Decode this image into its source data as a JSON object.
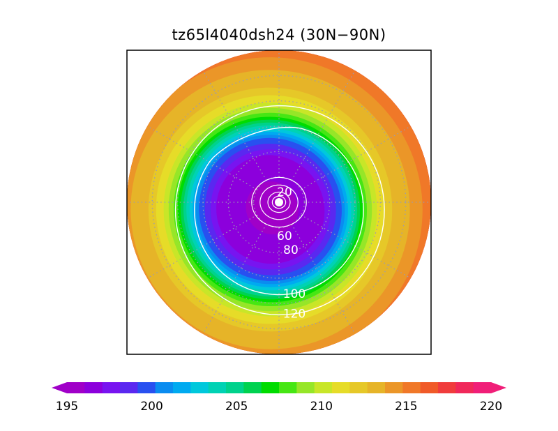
{
  "chart_data": {
    "type": "heatmap",
    "title": "tz65l4040dsh24 (30N−90N)",
    "projection": "polar-stereographic-north",
    "domain": {
      "lat_min": 30,
      "lat_max": 90
    },
    "gridlines": {
      "latitudes": [
        40,
        50,
        60,
        70,
        80
      ],
      "longitude_step": 30,
      "style": "dotted"
    },
    "fill_field": {
      "colorbar": {
        "min": 195,
        "max": 220,
        "step": 1,
        "ticks": [
          195,
          200,
          205,
          210,
          215,
          220
        ],
        "tick_labels": [
          "195",
          "200",
          "205",
          "210",
          "215",
          "220"
        ],
        "extend": "both",
        "colors": [
          "#a000c8",
          "#8c00dc",
          "#7814f0",
          "#5a28f0",
          "#2850f0",
          "#0a8cf0",
          "#00aaf0",
          "#00c8dc",
          "#00d2b4",
          "#00d28c",
          "#00d250",
          "#00dc00",
          "#46e614",
          "#96e628",
          "#c8e628",
          "#e6dc28",
          "#e6c828",
          "#e6b428",
          "#eb9628",
          "#f07828",
          "#f05a28",
          "#f03c3c",
          "#f0285a",
          "#f01e78"
        ]
      },
      "rings": [
        {
          "lat": 90,
          "value": 195.5
        },
        {
          "lat": 70,
          "value": 196.5
        },
        {
          "lat": 62,
          "value": 200
        },
        {
          "lat": 57,
          "value": 204
        },
        {
          "lat": 53,
          "value": 207.5
        },
        {
          "lat": 48,
          "value": 210
        },
        {
          "lat": 42,
          "value": 212
        },
        {
          "lat": 35,
          "value": 213
        },
        {
          "lat": 30,
          "value": 214
        }
      ],
      "wave": {
        "amplitude_lat": 4.5,
        "peak_lon": 310
      }
    },
    "contour_field": {
      "levels": [
        20,
        40,
        60,
        80,
        100,
        120
      ],
      "labeled_levels": [
        "20",
        "60",
        "80",
        "100",
        "120"
      ],
      "color": "#ffffff",
      "contours": [
        {
          "level": 20,
          "label": "20",
          "lat": 87.6
        },
        {
          "level": 40,
          "label": "",
          "lat": 86.0
        },
        {
          "level": 60,
          "label": "60",
          "lat": 83.2
        },
        {
          "level": 80,
          "label": "80",
          "lat": 80.2
        },
        {
          "level": 100,
          "label": "100",
          "lat": 57.3
        },
        {
          "level": 120,
          "label": "120",
          "lat": 49.6
        }
      ]
    }
  }
}
